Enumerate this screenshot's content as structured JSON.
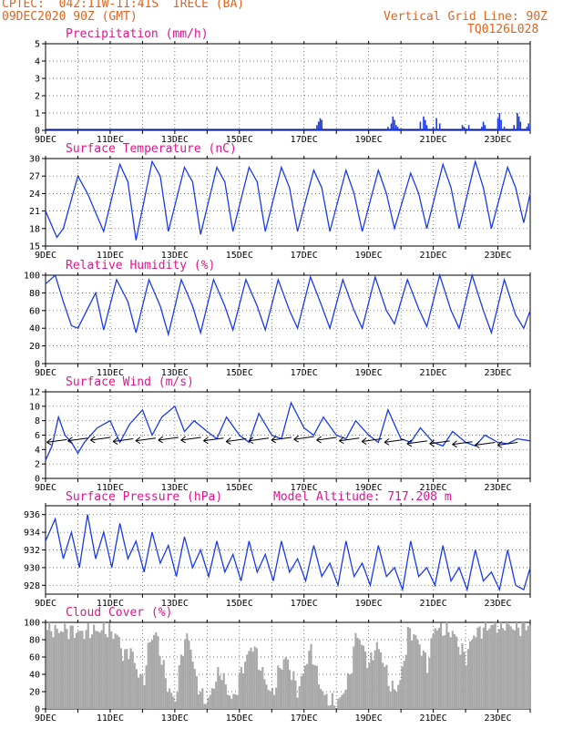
{
  "header": {
    "line1": "CPTEC:  042:11W-11:41S  IRECE (BA)",
    "line2": "09DEC2020 90Z (GMT)",
    "right1": "Vertical Grid Line: 90Z",
    "right2": "TQ0126L028"
  },
  "colors": {
    "header": "#e0641c",
    "title": "#e0158e",
    "line": "#1a3be8",
    "bar": "#1a3be8",
    "cloud": "#a8a8a8"
  },
  "x_ticks": [
    "9DEC",
    "11DEC",
    "13DEC",
    "15DEC",
    "17DEC",
    "19DEC",
    "21DEC",
    "23DEC"
  ],
  "chart_data": [
    {
      "type": "bar",
      "id": "precip",
      "title": "Precipitation (mm/h)",
      "ylim": [
        0,
        5
      ],
      "yticks": [
        0,
        1,
        2,
        3,
        4,
        5
      ],
      "xlim": [
        0,
        15
      ],
      "x": [
        8.3,
        8.4,
        8.45,
        8.5,
        8.55,
        10.6,
        10.7,
        10.75,
        10.8,
        10.85,
        10.9,
        11.0,
        11.6,
        11.7,
        11.75,
        11.8,
        12.0,
        12.1,
        12.2,
        12.9,
        12.95,
        13.0,
        13.1,
        13.5,
        13.55,
        13.6,
        14.0,
        14.05,
        14.1,
        14.2,
        14.5,
        14.6,
        14.65,
        14.7,
        14.9,
        14.95
      ],
      "values": [
        0.1,
        0.3,
        0.5,
        0.7,
        0.6,
        0.2,
        0.4,
        0.8,
        0.6,
        0.3,
        0.2,
        0.1,
        0.5,
        0.8,
        0.6,
        0.3,
        0.2,
        0.7,
        0.4,
        0.3,
        0.2,
        0.1,
        0.3,
        0.2,
        0.5,
        0.3,
        0.7,
        1.0,
        0.6,
        0.2,
        0.3,
        1.0,
        0.8,
        0.5,
        0.2,
        0.4
      ]
    },
    {
      "type": "line",
      "id": "temp",
      "title": "Surface Temperature (nC)",
      "ylim": [
        15,
        30
      ],
      "yticks": [
        15,
        18,
        21,
        24,
        27,
        30
      ],
      "xlim": [
        0,
        15
      ],
      "x": [
        0,
        0.35,
        0.55,
        1.0,
        1.3,
        1.8,
        2.3,
        2.55,
        2.8,
        3.3,
        3.55,
        3.8,
        4.3,
        4.55,
        4.8,
        5.3,
        5.55,
        5.8,
        6.3,
        6.55,
        6.8,
        7.3,
        7.55,
        7.8,
        8.3,
        8.55,
        8.8,
        9.3,
        9.55,
        9.8,
        10.3,
        10.55,
        10.8,
        11.3,
        11.55,
        11.8,
        12.3,
        12.55,
        12.8,
        13.3,
        13.55,
        13.8,
        14.3,
        14.55,
        14.8,
        15.0
      ],
      "values": [
        21,
        16.5,
        18,
        27,
        24,
        17.5,
        29,
        26,
        16,
        29.5,
        27,
        17.5,
        28.5,
        26,
        17,
        28.5,
        26,
        17.5,
        28.5,
        26,
        17.5,
        28.5,
        25,
        17.5,
        28,
        25,
        17.5,
        28,
        24,
        17.5,
        28,
        24,
        18,
        27.5,
        24,
        18,
        29,
        25,
        18,
        29.5,
        25,
        18,
        28.5,
        25,
        19,
        24
      ]
    },
    {
      "type": "line",
      "id": "rh",
      "title": "Relative Humidity (%)",
      "ylim": [
        0,
        100
      ],
      "yticks": [
        0,
        20,
        40,
        60,
        80,
        100
      ],
      "xlim": [
        0,
        15
      ],
      "x": [
        0,
        0.3,
        0.55,
        0.8,
        1.0,
        1.55,
        1.8,
        2.2,
        2.55,
        2.8,
        3.2,
        3.55,
        3.8,
        4.2,
        4.55,
        4.8,
        5.2,
        5.55,
        5.8,
        6.2,
        6.55,
        6.8,
        7.2,
        7.55,
        7.8,
        8.2,
        8.55,
        8.8,
        9.2,
        9.55,
        9.8,
        10.2,
        10.55,
        10.8,
        11.2,
        11.55,
        11.8,
        12.2,
        12.55,
        12.8,
        13.2,
        13.55,
        13.8,
        14.2,
        14.55,
        14.8,
        15.0
      ],
      "values": [
        90,
        100,
        70,
        43,
        40,
        80,
        38,
        95,
        70,
        35,
        95,
        65,
        33,
        95,
        65,
        35,
        95,
        65,
        38,
        95,
        65,
        38,
        95,
        60,
        40,
        98,
        65,
        40,
        95,
        60,
        40,
        98,
        60,
        45,
        95,
        62,
        42,
        100,
        60,
        40,
        100,
        60,
        35,
        95,
        55,
        40,
        60
      ]
    },
    {
      "type": "line",
      "id": "wind",
      "title": "Surface Wind (m/s)",
      "ylim": [
        0,
        12
      ],
      "yticks": [
        0,
        2,
        4,
        6,
        8,
        10,
        12
      ],
      "xlim": [
        0,
        15
      ],
      "x": [
        0,
        0.2,
        0.4,
        0.6,
        0.8,
        1.0,
        1.2,
        1.6,
        2.0,
        2.3,
        2.6,
        3.0,
        3.3,
        3.6,
        4.0,
        4.3,
        4.6,
        5.0,
        5.3,
        5.6,
        6.0,
        6.3,
        6.6,
        7.0,
        7.3,
        7.6,
        8.0,
        8.3,
        8.6,
        9.0,
        9.3,
        9.6,
        10.0,
        10.3,
        10.6,
        11.0,
        11.3,
        11.6,
        12.0,
        12.3,
        12.6,
        13.0,
        13.3,
        13.6,
        14.0,
        14.3,
        14.6,
        15.0
      ],
      "values": [
        2.5,
        4.5,
        8.5,
        6,
        5,
        3.5,
        5,
        7,
        8,
        5,
        7.5,
        9.5,
        6,
        8.5,
        10,
        6.5,
        8,
        6.5,
        5.5,
        8.5,
        6,
        5,
        9,
        6,
        5.5,
        10.5,
        7,
        6,
        8.5,
        6,
        5.5,
        8,
        6,
        5,
        9.5,
        5.5,
        5,
        7,
        5,
        4.5,
        6.5,
        5,
        4.5,
        6,
        5,
        4.8,
        5.5,
        5.2
      ]
    },
    {
      "type": "line",
      "id": "pressure",
      "title": "Surface Pressure (hPa)",
      "annotation": "Model Altitude: 717.208 m",
      "ylim": [
        927,
        937
      ],
      "yticks": [
        928,
        930,
        932,
        934,
        936
      ],
      "xlim": [
        0,
        15
      ],
      "x": [
        0,
        0.3,
        0.55,
        0.8,
        1.05,
        1.3,
        1.55,
        1.8,
        2.05,
        2.3,
        2.55,
        2.8,
        3.05,
        3.3,
        3.55,
        3.8,
        4.05,
        4.3,
        4.55,
        4.8,
        5.05,
        5.3,
        5.55,
        5.8,
        6.05,
        6.3,
        6.55,
        6.8,
        7.05,
        7.3,
        7.55,
        7.8,
        8.05,
        8.3,
        8.55,
        8.8,
        9.05,
        9.3,
        9.55,
        9.8,
        10.05,
        10.3,
        10.55,
        10.8,
        11.05,
        11.3,
        11.55,
        11.8,
        12.05,
        12.3,
        12.55,
        12.8,
        13.05,
        13.3,
        13.55,
        13.8,
        14.05,
        14.3,
        14.55,
        14.8,
        15.0
      ],
      "values": [
        933,
        935.5,
        931,
        934,
        930,
        936,
        931,
        934,
        930,
        935,
        931,
        933,
        929.5,
        934,
        930.5,
        932.5,
        929,
        933.5,
        930,
        932,
        929,
        933,
        929.5,
        931.5,
        928.5,
        933,
        929.5,
        931.5,
        928.5,
        933,
        929.5,
        931,
        928.5,
        932.5,
        929,
        930.5,
        928,
        933,
        929,
        930.5,
        928,
        932.5,
        929,
        930,
        927.5,
        933,
        929,
        930,
        928,
        932.5,
        928.5,
        930,
        927.5,
        932,
        928.5,
        929.5,
        927.5,
        932,
        928,
        927.5,
        930
      ]
    },
    {
      "type": "area",
      "id": "cloud",
      "title": "Cloud Cover (%)",
      "ylim": [
        0,
        100
      ],
      "yticks": [
        0,
        20,
        40,
        60,
        80,
        100
      ],
      "xlim": [
        0,
        15
      ],
      "x": [
        0,
        0.3,
        0.6,
        1.0,
        1.4,
        1.8,
        2.2,
        2.4,
        2.6,
        2.8,
        3.0,
        3.2,
        3.4,
        3.6,
        3.8,
        4.0,
        4.2,
        4.4,
        4.6,
        4.8,
        5.0,
        5.2,
        5.4,
        5.6,
        5.8,
        6.0,
        6.2,
        6.4,
        6.6,
        6.8,
        7.0,
        7.2,
        7.4,
        7.6,
        7.8,
        8.0,
        8.2,
        8.4,
        8.6,
        8.8,
        9.0,
        9.2,
        9.4,
        9.6,
        9.8,
        10.0,
        10.2,
        10.4,
        10.6,
        10.8,
        11.0,
        11.2,
        11.4,
        11.6,
        11.8,
        12.0,
        12.2,
        12.4,
        12.6,
        12.8,
        13.0,
        13.2,
        13.4,
        13.6,
        13.8,
        14.0,
        14.2,
        14.4,
        14.6,
        14.8,
        15.0
      ],
      "values": [
        95,
        90,
        92,
        88,
        90,
        92,
        85,
        60,
        70,
        45,
        30,
        80,
        88,
        50,
        20,
        10,
        70,
        85,
        40,
        15,
        8,
        30,
        45,
        20,
        10,
        40,
        60,
        75,
        50,
        30,
        15,
        45,
        60,
        40,
        20,
        50,
        70,
        35,
        15,
        8,
        5,
        20,
        40,
        90,
        70,
        50,
        75,
        60,
        30,
        20,
        40,
        90,
        85,
        70,
        50,
        95,
        92,
        90,
        88,
        70,
        60,
        85,
        90,
        95,
        96,
        95,
        98,
        95,
        94,
        96,
        97
      ]
    },
    {
      "type": "vector",
      "id": "wind_barbs",
      "x": [
        0.35,
        1.0,
        1.7,
        2.4,
        3.1,
        3.8,
        4.5,
        5.2,
        5.9,
        6.6,
        7.3,
        8.0,
        8.7,
        9.4,
        10.1,
        10.8,
        11.5,
        12.2,
        12.9,
        13.6,
        14.3
      ],
      "values": [
        5.2,
        5.4,
        5.5,
        5.3,
        5.4,
        5.5,
        5.5,
        5.4,
        5.3,
        5.4,
        5.5,
        5.6,
        5.5,
        5.4,
        5.3,
        5.2,
        5.0,
        5.0,
        4.9,
        4.8,
        4.8
      ]
    }
  ]
}
